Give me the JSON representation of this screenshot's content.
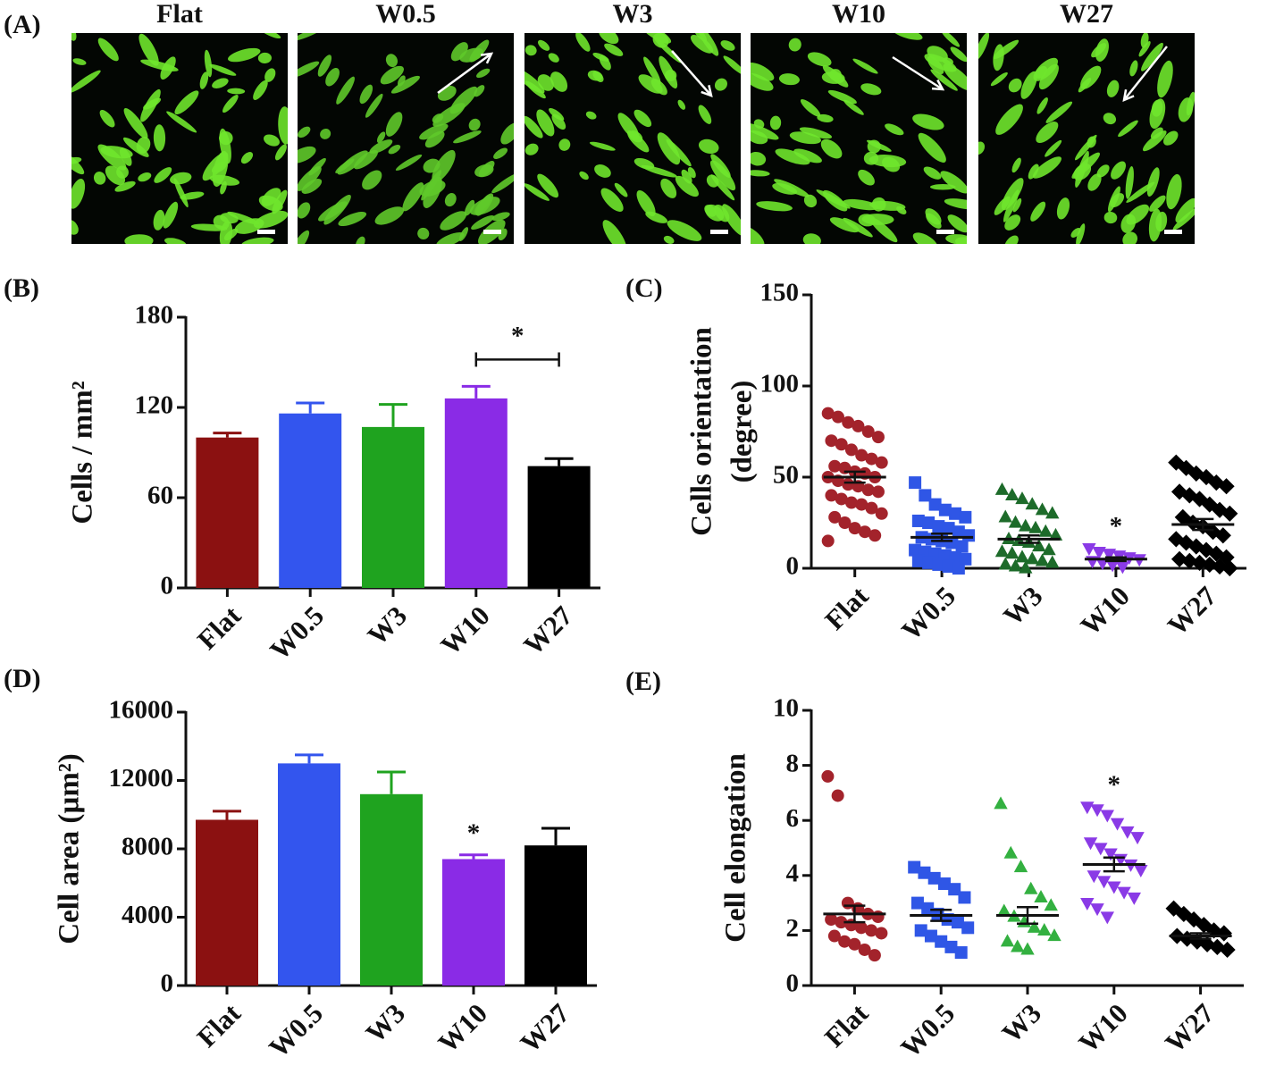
{
  "panel_a": {
    "label": "(A)",
    "titles": [
      "Flat",
      "W0.5",
      "W3",
      "W10",
      "W27"
    ]
  },
  "chart_data": [
    {
      "type": "bar",
      "panel_label": "(B)",
      "ylabel": "Cells / mm²",
      "categories": [
        "Flat",
        "W0.5",
        "W3",
        "W10",
        "W27"
      ],
      "values": [
        100,
        116,
        107,
        126,
        81
      ],
      "errors": [
        3,
        7,
        15,
        8,
        5
      ],
      "colors": [
        "#8b1111",
        "#3355ee",
        "#1fa31f",
        "#8a2be6",
        "#000000"
      ],
      "ylim": [
        0,
        180
      ],
      "yticks": [
        0,
        60,
        120,
        180
      ],
      "annotations": [
        {
          "text": "*",
          "category": "W10",
          "bracket_to": "W27"
        }
      ]
    },
    {
      "type": "strip",
      "panel_label": "(C)",
      "ylabel": [
        "Cells orientation",
        "(degree)"
      ],
      "categories": [
        "Flat",
        "W0.5",
        "W3",
        "W10",
        "W27"
      ],
      "groups": [
        {
          "color": "#a3232b",
          "marker": "circle",
          "mean": 50,
          "sem": 3,
          "values": [
            85,
            83,
            80,
            78,
            75,
            72,
            70,
            68,
            65,
            62,
            60,
            58,
            56,
            55,
            53,
            52,
            50,
            50,
            48,
            46,
            45,
            43,
            42,
            40,
            38,
            36,
            35,
            33,
            30,
            28,
            25,
            22,
            20,
            18,
            15
          ]
        },
        {
          "color": "#2f56e6",
          "marker": "square",
          "mean": 17,
          "sem": 2,
          "values": [
            47,
            40,
            35,
            32,
            30,
            28,
            26,
            25,
            23,
            22,
            20,
            18,
            17,
            16,
            15,
            14,
            12,
            10,
            9,
            8,
            7,
            6,
            5,
            4,
            3,
            2,
            1,
            0
          ]
        },
        {
          "color": "#1d6b2a",
          "marker": "triangle",
          "mean": 16,
          "sem": 2,
          "values": [
            43,
            40,
            38,
            35,
            32,
            30,
            28,
            25,
            23,
            22,
            20,
            18,
            16,
            15,
            14,
            12,
            10,
            9,
            8,
            6,
            5,
            4,
            3,
            2,
            1,
            0
          ]
        },
        {
          "color": "#8a3ae6",
          "marker": "triangle-down",
          "mean": 5,
          "sem": 1,
          "values": [
            11,
            9,
            8,
            7,
            6,
            5,
            4,
            3,
            2,
            1
          ]
        },
        {
          "color": "#000000",
          "marker": "diamond",
          "mean": 24,
          "sem": 3,
          "values": [
            58,
            55,
            52,
            50,
            47,
            45,
            42,
            40,
            38,
            35,
            32,
            30,
            28,
            25,
            23,
            20,
            18,
            16,
            14,
            12,
            10,
            8,
            6,
            5,
            4,
            3,
            2,
            1,
            0
          ]
        }
      ],
      "ylim": [
        0,
        150
      ],
      "yticks": [
        0,
        50,
        100,
        150
      ],
      "annotations": [
        {
          "text": "*",
          "category": "W10"
        }
      ]
    },
    {
      "type": "bar",
      "panel_label": "(D)",
      "ylabel": "Cell area (µm²)",
      "categories": [
        "Flat",
        "W0.5",
        "W3",
        "W10",
        "W27"
      ],
      "values": [
        9700,
        13000,
        11200,
        7400,
        8200
      ],
      "errors": [
        500,
        500,
        1300,
        250,
        1000
      ],
      "colors": [
        "#8b1111",
        "#3355ee",
        "#1fa31f",
        "#8a2be6",
        "#000000"
      ],
      "ylim": [
        0,
        16000
      ],
      "yticks": [
        0,
        4000,
        8000,
        12000,
        16000
      ],
      "annotations": [
        {
          "text": "*",
          "category": "W10"
        }
      ]
    },
    {
      "type": "strip",
      "panel_label": "(E)",
      "ylabel": "Cell elongation",
      "categories": [
        "Flat",
        "W0.5",
        "W3",
        "W10",
        "W27"
      ],
      "groups": [
        {
          "color": "#a3232b",
          "marker": "circle",
          "mean": 2.6,
          "sem": 0.3,
          "values": [
            7.6,
            6.9,
            3.0,
            2.8,
            2.6,
            2.5,
            2.4,
            2.3,
            2.2,
            2.1,
            2.0,
            1.9,
            1.8,
            1.6,
            1.5,
            1.3,
            1.1
          ]
        },
        {
          "color": "#2f56e6",
          "marker": "square",
          "mean": 2.55,
          "sem": 0.2,
          "values": [
            4.3,
            4.1,
            3.9,
            3.7,
            3.5,
            3.2,
            3.0,
            2.8,
            2.6,
            2.4,
            2.3,
            2.1,
            2.0,
            1.8,
            1.6,
            1.4,
            1.2
          ]
        },
        {
          "color": "#33b040",
          "marker": "triangle",
          "mean": 2.55,
          "sem": 0.3,
          "values": [
            6.6,
            4.8,
            4.3,
            3.5,
            3.2,
            2.9,
            2.7,
            2.5,
            2.3,
            2.1,
            2.0,
            1.8,
            1.6,
            1.4,
            1.3
          ]
        },
        {
          "color": "#8a3ae6",
          "marker": "triangle-down",
          "mean": 4.4,
          "sem": 0.25,
          "values": [
            6.5,
            6.4,
            6.2,
            5.9,
            5.6,
            5.4,
            5.2,
            5.0,
            4.8,
            4.6,
            4.4,
            4.2,
            4.0,
            3.8,
            3.6,
            3.4,
            3.2,
            3.0,
            2.8,
            2.5
          ]
        },
        {
          "color": "#000000",
          "marker": "diamond",
          "mean": 1.8,
          "sem": 0.1,
          "values": [
            2.8,
            2.6,
            2.4,
            2.2,
            2.0,
            1.9,
            1.8,
            1.7,
            1.6,
            1.5,
            1.4,
            1.3
          ]
        }
      ],
      "ylim": [
        0,
        10
      ],
      "yticks": [
        0,
        2,
        4,
        6,
        8,
        10
      ],
      "annotations": [
        {
          "text": "*",
          "category": "W10"
        }
      ]
    }
  ]
}
